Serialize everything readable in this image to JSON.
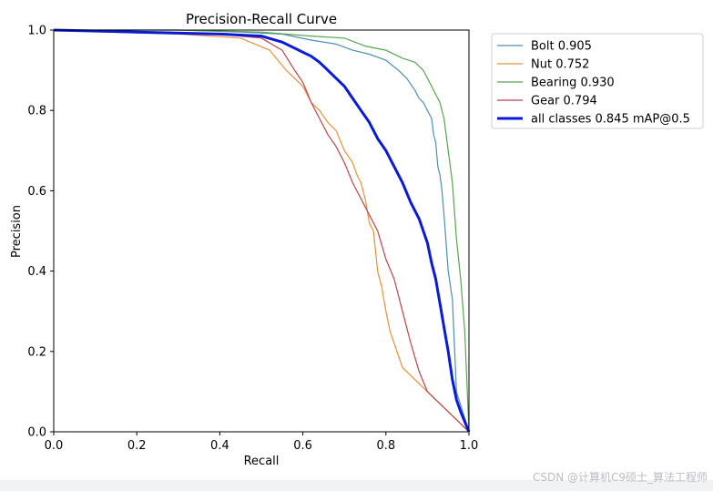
{
  "chart_data": {
    "type": "line",
    "title": "Precision-Recall Curve",
    "xlabel": "Recall",
    "ylabel": "Precision",
    "xlim": [
      0,
      1
    ],
    "ylim": [
      0,
      1
    ],
    "xticks": [
      "0.0",
      "0.2",
      "0.4",
      "0.6",
      "0.8",
      "1.0"
    ],
    "yticks": [
      "0.0",
      "0.2",
      "0.4",
      "0.6",
      "0.8",
      "1.0"
    ],
    "grid": false,
    "legend_position": "outside-top-right",
    "series": [
      {
        "name": "Bolt 0.905",
        "color": "#4f8fb3",
        "width": 1.2,
        "x": [
          0,
          0.15,
          0.3,
          0.45,
          0.55,
          0.62,
          0.68,
          0.72,
          0.76,
          0.8,
          0.83,
          0.85,
          0.87,
          0.88,
          0.89,
          0.9,
          0.91,
          0.915,
          0.92,
          0.925,
          0.93,
          0.935,
          0.94,
          0.95,
          0.96,
          0.97,
          1.0
        ],
        "y": [
          1.0,
          1.0,
          1.0,
          0.995,
          0.99,
          0.975,
          0.965,
          0.95,
          0.94,
          0.925,
          0.9,
          0.88,
          0.85,
          0.83,
          0.82,
          0.8,
          0.78,
          0.74,
          0.72,
          0.66,
          0.64,
          0.6,
          0.54,
          0.4,
          0.33,
          0.1,
          0.0
        ]
      },
      {
        "name": "Nut 0.752",
        "color": "#e6913a",
        "width": 1.2,
        "x": [
          0,
          0.13,
          0.3,
          0.45,
          0.52,
          0.56,
          0.58,
          0.6,
          0.62,
          0.64,
          0.66,
          0.68,
          0.7,
          0.72,
          0.73,
          0.74,
          0.75,
          0.76,
          0.77,
          0.78,
          0.79,
          0.8,
          0.81,
          0.82,
          0.84,
          0.86,
          0.9,
          1.0
        ],
        "y": [
          1.0,
          0.995,
          0.99,
          0.98,
          0.95,
          0.9,
          0.88,
          0.86,
          0.82,
          0.8,
          0.77,
          0.75,
          0.7,
          0.67,
          0.64,
          0.62,
          0.58,
          0.52,
          0.5,
          0.4,
          0.36,
          0.3,
          0.25,
          0.22,
          0.16,
          0.14,
          0.1,
          0.0
        ]
      },
      {
        "name": "Bearing 0.930",
        "color": "#5aa352",
        "width": 1.2,
        "x": [
          0,
          0.3,
          0.5,
          0.62,
          0.7,
          0.75,
          0.8,
          0.84,
          0.87,
          0.89,
          0.9,
          0.91,
          0.92,
          0.93,
          0.94,
          0.95,
          0.96,
          0.97,
          0.98,
          0.99,
          1.0
        ],
        "y": [
          1.0,
          1.0,
          0.995,
          0.985,
          0.98,
          0.96,
          0.95,
          0.93,
          0.92,
          0.9,
          0.88,
          0.86,
          0.84,
          0.82,
          0.78,
          0.7,
          0.62,
          0.48,
          0.38,
          0.25,
          0.0
        ]
      },
      {
        "name": "Gear 0.794",
        "color": "#b8464e",
        "width": 1.2,
        "x": [
          0,
          0.2,
          0.4,
          0.5,
          0.55,
          0.58,
          0.6,
          0.62,
          0.64,
          0.66,
          0.68,
          0.7,
          0.72,
          0.74,
          0.76,
          0.78,
          0.8,
          0.82,
          0.84,
          0.86,
          0.88,
          0.9,
          1.0
        ],
        "y": [
          1.0,
          0.995,
          0.99,
          0.98,
          0.95,
          0.9,
          0.87,
          0.82,
          0.78,
          0.74,
          0.71,
          0.67,
          0.62,
          0.58,
          0.54,
          0.5,
          0.43,
          0.38,
          0.3,
          0.22,
          0.15,
          0.1,
          0.0
        ]
      },
      {
        "name": "all classes 0.845 mAP@0.5",
        "color": "#0a1ad6",
        "width": 3,
        "x": [
          0,
          0.2,
          0.4,
          0.5,
          0.55,
          0.58,
          0.6,
          0.62,
          0.64,
          0.66,
          0.68,
          0.7,
          0.72,
          0.74,
          0.76,
          0.78,
          0.8,
          0.82,
          0.84,
          0.86,
          0.88,
          0.9,
          0.91,
          0.92,
          0.93,
          0.94,
          0.95,
          0.96,
          0.97,
          0.98,
          1.0
        ],
        "y": [
          1.0,
          0.995,
          0.99,
          0.985,
          0.97,
          0.955,
          0.945,
          0.935,
          0.92,
          0.9,
          0.88,
          0.86,
          0.83,
          0.8,
          0.77,
          0.73,
          0.7,
          0.66,
          0.62,
          0.57,
          0.53,
          0.47,
          0.42,
          0.38,
          0.32,
          0.26,
          0.2,
          0.13,
          0.08,
          0.05,
          0.0
        ]
      }
    ]
  },
  "watermark": "CSDN @计算机C9硕士_算法工程师"
}
